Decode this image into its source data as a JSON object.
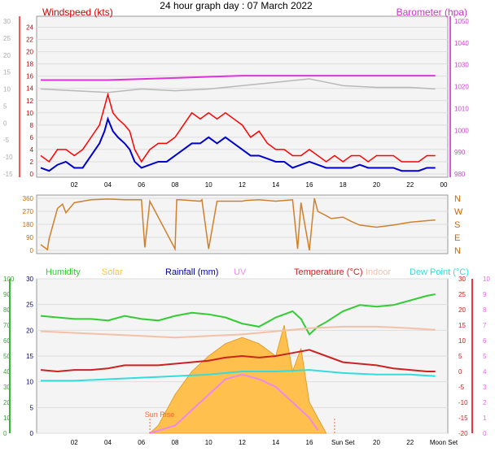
{
  "title": "24 hour graph day : 07 March 2022",
  "colors": {
    "wind": "#ff0000",
    "gust_avg": "#0000cc",
    "baro": "#dd33dd",
    "gust_hist": "#b8b8b8",
    "dir": "#d0802a",
    "humidity": "#33cc33",
    "solar": "#ffc04d",
    "rain": "#000099",
    "uv": "#ee88ee",
    "temp": "#cc2222",
    "indoor": "#f4c0a8",
    "dew": "#33dddd",
    "axis_left": "#ff3030",
    "axis_right_top": "#dd55dd",
    "hum_axis": "#33bb33",
    "temp_axis": "#ee3344"
  },
  "chart_data": [
    {
      "type": "line",
      "name": "wind-pressure",
      "left_label": "Windspeed (kts)",
      "right_label": "Barometer (hpa)",
      "left_ticks": [
        0,
        2,
        4,
        6,
        8,
        10,
        12,
        14,
        16,
        18,
        20,
        22,
        24
      ],
      "right_ticks": [
        980,
        990,
        1000,
        1010,
        1020,
        1030,
        1040,
        1050
      ],
      "far_left_ticks": [
        -15,
        -10,
        -5,
        0,
        5,
        10,
        15,
        20,
        25,
        30
      ],
      "x_ticks": [
        "02",
        "04",
        "06",
        "08",
        "10",
        "12",
        "14",
        "16",
        "18",
        "20",
        "22",
        "00"
      ],
      "ylim": [
        0,
        25
      ],
      "series": [
        {
          "key": "wind_max",
          "x": [
            0,
            0.5,
            1,
            1.5,
            2,
            2.5,
            3,
            3.5,
            3.8,
            4,
            4.3,
            4.6,
            5,
            5.3,
            5.6,
            6,
            6.5,
            7,
            7.5,
            8,
            8.5,
            9,
            9.5,
            10,
            10.5,
            11,
            11.5,
            12,
            12.5,
            13,
            13.5,
            14,
            14.5,
            15,
            15.5,
            16,
            16.5,
            17,
            17.5,
            18,
            18.5,
            19,
            19.5,
            20,
            20.5,
            21,
            21.5,
            22,
            22.5,
            23,
            23.5
          ],
          "y": [
            3,
            2,
            4,
            4,
            3,
            4,
            6,
            8,
            11,
            13,
            10,
            9,
            8,
            7,
            4,
            2,
            4,
            5,
            5,
            6,
            8,
            10,
            9,
            10,
            9,
            10,
            9,
            8,
            6,
            7,
            5,
            4,
            4,
            3,
            3,
            4,
            3,
            2,
            3,
            2,
            3,
            3,
            2,
            3,
            3,
            3,
            2,
            2,
            2,
            3,
            3
          ]
        },
        {
          "key": "wind_avg",
          "x": [
            0,
            0.5,
            1,
            1.5,
            2,
            2.5,
            3,
            3.5,
            3.8,
            4,
            4.3,
            4.6,
            5,
            5.3,
            5.6,
            6,
            6.5,
            7,
            7.5,
            8,
            8.5,
            9,
            9.5,
            10,
            10.5,
            11,
            11.5,
            12,
            12.5,
            13,
            13.5,
            14,
            14.5,
            15,
            15.5,
            16,
            16.5,
            17,
            17.5,
            18,
            18.5,
            19,
            19.5,
            20,
            20.5,
            21,
            21.5,
            22,
            22.5,
            23,
            23.5
          ],
          "y": [
            1,
            0.5,
            1.5,
            2,
            1,
            1,
            3,
            5,
            7,
            9,
            7,
            6,
            5,
            4,
            2,
            1,
            1.5,
            2,
            2,
            3,
            4,
            5,
            5,
            6,
            5,
            6,
            5,
            4,
            3,
            3,
            2.5,
            2,
            2,
            1,
            1.5,
            2,
            1.5,
            1,
            1,
            1,
            1,
            1.5,
            1,
            1,
            1,
            1,
            0.5,
            0.5,
            0.5,
            1,
            1
          ]
        },
        {
          "key": "gust_hist",
          "x": [
            0,
            2,
            4,
            6,
            8,
            10,
            12,
            14,
            15,
            16,
            17,
            18,
            20,
            22,
            23.5
          ],
          "y": [
            10,
            9.5,
            9,
            10,
            9.5,
            10,
            11,
            12,
            12.5,
            13,
            12,
            11,
            10.5,
            10.5,
            10
          ]
        },
        {
          "key": "baro",
          "x": [
            0,
            4,
            8,
            12,
            16,
            20,
            23.5
          ],
          "y": [
            1023,
            1023,
            1024,
            1025,
            1025,
            1025,
            1025
          ]
        }
      ]
    },
    {
      "type": "line",
      "name": "wind-direction",
      "left_ticks": [
        0,
        90,
        180,
        270,
        360
      ],
      "right_labels": [
        "N",
        "E",
        "S",
        "W",
        "N"
      ],
      "ylim": [
        0,
        360
      ],
      "series": [
        {
          "key": "dir",
          "x": [
            0,
            0.4,
            0.5,
            1,
            1.3,
            1.5,
            2,
            3,
            4,
            5,
            6,
            6.2,
            6.5,
            8,
            8.1,
            8.3,
            9.5,
            9.6,
            10,
            10.5,
            12,
            12.2,
            13,
            14,
            14.5,
            15,
            15.3,
            15.5,
            16,
            16.3,
            16.5,
            17,
            17.3,
            18,
            18.5,
            19,
            20,
            21,
            22,
            23,
            23.5
          ],
          "y": [
            40,
            5,
            80,
            290,
            320,
            260,
            330,
            350,
            355,
            350,
            350,
            20,
            340,
            10,
            350,
            350,
            340,
            350,
            10,
            340,
            340,
            345,
            350,
            340,
            345,
            350,
            10,
            330,
            0,
            360,
            270,
            240,
            220,
            230,
            200,
            175,
            160,
            175,
            195,
            205,
            210
          ]
        }
      ]
    },
    {
      "type": "line",
      "name": "temperature-humidity",
      "legend": [
        "Humidity",
        "Solar",
        "Rainfall (mm)",
        "UV",
        "Temperature (°C)",
        "Indoor",
        "Dew Point (°C)"
      ],
      "left_ticks_humidity": [
        0,
        10,
        20,
        30,
        40,
        50,
        60,
        70,
        80,
        90,
        100
      ],
      "left_ticks_rain": [
        0,
        5,
        10,
        15,
        20,
        25,
        30
      ],
      "right_ticks_temp": [
        -20,
        -15,
        -10,
        -5,
        0,
        5,
        10,
        15,
        20,
        25,
        30
      ],
      "right_ticks_uv": [
        0,
        1,
        2,
        3,
        4,
        5,
        6,
        7,
        8,
        9,
        10
      ],
      "x_ticks": [
        "02",
        "04",
        "06",
        "08",
        "10",
        "12",
        "14",
        "16",
        "Sun Set",
        "20",
        "22",
        "Moon Set"
      ],
      "annotations": [
        "Sun Rise",
        "Sun Set",
        "Moon Set"
      ],
      "series": [
        {
          "key": "humidity",
          "x": [
            0,
            1,
            2,
            3,
            4,
            5,
            6,
            7,
            8,
            9,
            10,
            11,
            12,
            13,
            14,
            15,
            15.5,
            16,
            16.5,
            17,
            18,
            19,
            20,
            21,
            22,
            23,
            23.5
          ],
          "y": [
            76,
            75,
            74,
            74,
            73,
            76,
            74,
            73,
            76,
            78,
            77,
            75,
            71,
            69,
            75,
            79,
            74,
            64,
            69,
            72,
            79,
            83,
            82,
            83,
            86,
            89,
            90
          ]
        },
        {
          "key": "temp",
          "x": [
            0,
            1,
            2,
            3,
            4,
            5,
            6,
            7,
            8,
            9,
            10,
            11,
            12,
            13,
            14,
            15,
            16,
            17,
            18,
            19,
            20,
            21,
            22,
            23,
            23.5
          ],
          "y": [
            0.5,
            0,
            0.5,
            0.5,
            1,
            2,
            2,
            2,
            2.5,
            3,
            3.5,
            4.5,
            5,
            4.5,
            5,
            6,
            7,
            5,
            3,
            2.5,
            2,
            1,
            0.5,
            0,
            0
          ]
        },
        {
          "key": "dew",
          "x": [
            0,
            2,
            4,
            6,
            8,
            10,
            12,
            14,
            16,
            18,
            20,
            22,
            23.5
          ],
          "y": [
            -3,
            -3,
            -2.5,
            -2,
            -1.5,
            -1,
            0,
            0,
            0.5,
            -0.5,
            -1,
            -1,
            -1.5
          ]
        },
        {
          "key": "indoor",
          "x": [
            0,
            2,
            4,
            6,
            8,
            10,
            12,
            14,
            16,
            18,
            20,
            22,
            23.5
          ],
          "y": [
            13,
            12.5,
            12,
            11.5,
            11,
            11.5,
            12,
            13,
            14,
            14.5,
            14.5,
            14,
            13.5
          ]
        },
        {
          "key": "uv",
          "x": [
            6.5,
            8,
            9,
            10,
            11,
            12,
            13,
            14,
            15,
            16,
            16.5
          ],
          "y": [
            0,
            0.5,
            1.5,
            2.5,
            3.5,
            3.8,
            3.5,
            3,
            2,
            1,
            0.2
          ]
        },
        {
          "key": "solar",
          "x": [
            6.5,
            7,
            8,
            9,
            10,
            11,
            12,
            13,
            14,
            14.5,
            15,
            15.5,
            16,
            16.5,
            17
          ],
          "y": [
            0,
            0.5,
            2.5,
            4,
            5,
            5.8,
            6.2,
            5.8,
            5,
            7,
            4,
            5.5,
            2,
            1,
            0
          ]
        }
      ]
    }
  ]
}
